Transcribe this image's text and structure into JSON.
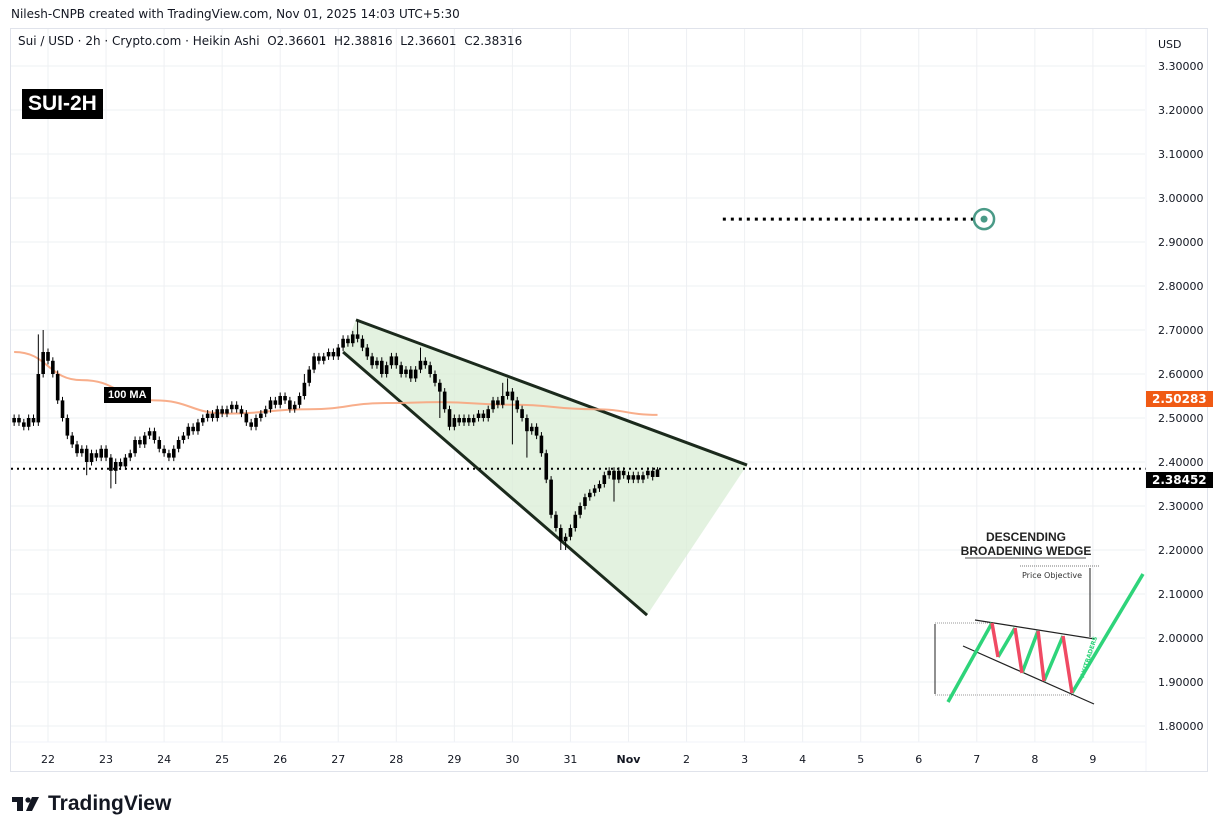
{
  "header": {
    "credit": "Nilesh-CNPB created with TradingView.com, Nov 01, 2025 14:03 UTC+5:30",
    "symbol_line": "Sui / USD · 2h · Crypto.com · Heikin Ashi",
    "ohlc": {
      "o": "O2.36601",
      "h": "H2.38816",
      "l": "L2.36601",
      "c": "C2.38316"
    }
  },
  "badge": "SUI-2H",
  "ma_label": "100 MA",
  "price_axis": {
    "currency": "USD",
    "ticks": [
      "3.30000",
      "3.20000",
      "3.10000",
      "3.00000",
      "2.90000",
      "2.80000",
      "2.70000",
      "2.60000",
      "2.50000",
      "2.40000",
      "2.30000",
      "2.20000",
      "2.10000",
      "2.00000",
      "1.90000",
      "1.80000"
    ],
    "ma_tag": "2.50283",
    "last_price_tag": "2.38452"
  },
  "time_axis": {
    "ticks": [
      "22",
      "23",
      "24",
      "25",
      "26",
      "27",
      "28",
      "29",
      "30",
      "31",
      "Nov",
      "2",
      "3",
      "4",
      "5",
      "6",
      "7",
      "8",
      "9"
    ]
  },
  "colors": {
    "ma": "#f7a57e",
    "ma_tag": "#f05a14",
    "wedge_fill": "#d9eed6",
    "wedge_line": "#1b2a1c",
    "candle": "#000000",
    "target": "#4a9a87",
    "inset_up": "#2ed47a",
    "inset_down": "#f04a64"
  },
  "inset": {
    "title_1": "DESCENDING",
    "title_2": "BROADENING WEDGE",
    "price_objective": "Price Objective",
    "watermark": "AXITRADERS"
  },
  "brand": "TradingView",
  "chart_data": {
    "type": "candlestick",
    "interval": "2h",
    "ylim": [
      1.75,
      3.35
    ],
    "grid": true,
    "closes": [
      2.5,
      2.49,
      2.48,
      2.5,
      2.49,
      2.6,
      2.65,
      2.63,
      2.6,
      2.54,
      2.5,
      2.46,
      2.44,
      2.42,
      2.43,
      2.4,
      2.42,
      2.41,
      2.43,
      2.41,
      2.38,
      2.4,
      2.39,
      2.41,
      2.42,
      2.45,
      2.44,
      2.46,
      2.47,
      2.45,
      2.43,
      2.42,
      2.41,
      2.43,
      2.45,
      2.46,
      2.48,
      2.47,
      2.49,
      2.5,
      2.51,
      2.5,
      2.52,
      2.51,
      2.52,
      2.53,
      2.52,
      2.51,
      2.49,
      2.48,
      2.5,
      2.51,
      2.52,
      2.54,
      2.53,
      2.55,
      2.54,
      2.52,
      2.53,
      2.55,
      2.58,
      2.61,
      2.64,
      2.63,
      2.64,
      2.65,
      2.64,
      2.66,
      2.68,
      2.67,
      2.69,
      2.68,
      2.66,
      2.64,
      2.62,
      2.63,
      2.6,
      2.62,
      2.64,
      2.62,
      2.6,
      2.61,
      2.59,
      2.61,
      2.63,
      2.62,
      2.6,
      2.58,
      2.56,
      2.52,
      2.48,
      2.5,
      2.49,
      2.5,
      2.49,
      2.5,
      2.51,
      2.5,
      2.52,
      2.54,
      2.53,
      2.55,
      2.56,
      2.54,
      2.52,
      2.5,
      2.47,
      2.48,
      2.46,
      2.42,
      2.36,
      2.28,
      2.25,
      2.22,
      2.23,
      2.25,
      2.28,
      2.3,
      2.32,
      2.33,
      2.34,
      2.35,
      2.37,
      2.38,
      2.36,
      2.38,
      2.37,
      2.36,
      2.37,
      2.36,
      2.37,
      2.38,
      2.366,
      2.383
    ],
    "high_overrides": {
      "5": 2.69,
      "6": 2.7,
      "60": 2.6,
      "71": 2.72,
      "84": 2.66,
      "101": 2.58,
      "102": 2.59
    },
    "low_overrides": {
      "15": 2.37,
      "20": 2.34,
      "21": 2.35,
      "88": 2.5,
      "103": 2.44,
      "106": 2.41,
      "113": 2.2,
      "114": 2.2,
      "124": 2.31
    },
    "last_candle": {
      "open": 2.36601,
      "high": 2.38816,
      "low": 2.36601,
      "close": 2.38316
    },
    "moving_average": {
      "name": "100 MA",
      "points": [
        [
          "2025-10-21 10:00",
          2.65
        ],
        [
          "2025-10-22 14:00",
          2.586
        ],
        [
          "2025-10-23 20:00",
          2.54
        ],
        [
          "2025-10-25 02:00",
          2.51
        ],
        [
          "2025-10-26 12:00",
          2.52
        ],
        [
          "2025-10-27 20:00",
          2.534
        ],
        [
          "2025-10-28 18:00",
          2.536
        ],
        [
          "2025-10-30 00:00",
          2.53
        ],
        [
          "2025-10-31 10:00",
          2.52
        ],
        [
          "2025-11-01 12:00",
          2.507
        ]
      ]
    },
    "wedge": {
      "upper": [
        [
          "2025-10-27 07:20",
          2.723
        ],
        [
          "2025-11-03 01:00",
          2.393
        ]
      ],
      "lower": [
        [
          "2025-10-27 02:00",
          2.65
        ],
        [
          "2025-11-01 07:40",
          2.052
        ]
      ]
    },
    "target": {
      "price": 2.952,
      "from": "2025-11-02 15:00",
      "to": "2025-11-07 03:00"
    },
    "last_price": 2.38452,
    "ma_last": 2.50283
  }
}
